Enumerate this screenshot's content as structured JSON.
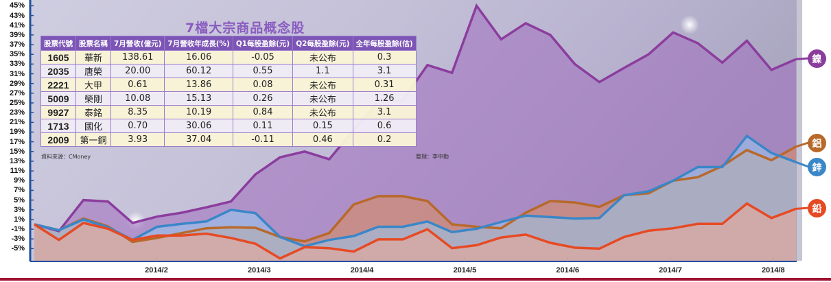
{
  "table": {
    "title": "7檔大宗商品概念股",
    "headers": [
      "股票代號",
      "股票名稱",
      "7月營收(億元)",
      "7月營收年成長(%)",
      "Q1每股盈餘(元)",
      "Q2每股盈餘(元)",
      "全年每股盈餘(估)"
    ],
    "rows": [
      [
        "1605",
        "華新",
        "138.61",
        "16.06",
        "-0.05",
        "未公布",
        "0.3"
      ],
      [
        "2035",
        "唐榮",
        "20.00",
        "60.12",
        "0.55",
        "1.1",
        "3.1"
      ],
      [
        "2221",
        "大甲",
        "0.61",
        "13.86",
        "0.08",
        "未公布",
        "0.31"
      ],
      [
        "5009",
        "榮剛",
        "10.08",
        "15.13",
        "0.26",
        "未公布",
        "1.26"
      ],
      [
        "9927",
        "泰銘",
        "8.35",
        "10.19",
        "0.84",
        "未公布",
        "3.1"
      ],
      [
        "1713",
        "國化",
        "0.70",
        "30.06",
        "0.11",
        "0.15",
        "0.6"
      ],
      [
        "2009",
        "第一銅",
        "3.93",
        "37.04",
        "-0.11",
        "0.46",
        "0.2"
      ]
    ],
    "source": "資料來源：CMoney",
    "editor": "整理：李中勳"
  },
  "colors": {
    "nickel": "#8b3d9e",
    "aluminum": "#b8692a",
    "zinc": "#3a86c8",
    "lead": "#e64a24",
    "axis": "#1f4fa0",
    "footer_rule": "#a01030"
  },
  "chart_data": {
    "type": "area",
    "title": "7檔大宗商品概念股",
    "xlabel": "",
    "ylabel": "",
    "ylim": [
      -5,
      45
    ],
    "y_ticks": [
      "45%",
      "43%",
      "41%",
      "39%",
      "37%",
      "35%",
      "33%",
      "31%",
      "29%",
      "27%",
      "25%",
      "23%",
      "21%",
      "19%",
      "17%",
      "15%",
      "13%",
      "11%",
      "9%",
      "7%",
      "5%",
      "3%",
      "1%",
      "-1%",
      "-3%",
      "-5%"
    ],
    "x_tick_labels": [
      "2014/2",
      "2014/3",
      "2014/4",
      "2014/5",
      "2014/6",
      "2014/7",
      "2014/8"
    ],
    "grid": false,
    "legend_position": "right (labels at line ends)",
    "x_points": 32,
    "series": [
      {
        "name": "鎳",
        "color": "#8b3d9e",
        "values": [
          0,
          -1.4,
          5.0,
          4.7,
          0.3,
          1.6,
          2.4,
          3.5,
          4.7,
          10.3,
          13.8,
          15.0,
          13.4,
          19.4,
          25.3,
          25.6,
          32.8,
          31.2,
          45.0,
          38.1,
          41.4,
          39.0,
          33.0,
          29.3,
          32.2,
          35.0,
          39.5,
          37.3,
          33.3,
          37.8,
          31.8,
          34.0
        ]
      },
      {
        "name": "鋁",
        "color": "#b8692a",
        "values": [
          0,
          -1.2,
          1.2,
          -0.4,
          -3.6,
          -2.8,
          -1.8,
          -0.8,
          -0.6,
          -0.7,
          -2.6,
          -3.5,
          -1.8,
          4.1,
          5.8,
          5.8,
          4.8,
          0,
          -0.5,
          -0.8,
          2.4,
          4.8,
          4.5,
          3.6,
          6.0,
          6.4,
          9.0,
          9.7,
          12.0,
          15.3,
          13.2,
          16.0
        ]
      },
      {
        "name": "鋅",
        "color": "#3a86c8",
        "values": [
          0,
          -1.2,
          1.0,
          -0.6,
          -3.2,
          -0.5,
          0.1,
          0.6,
          3.0,
          2.3,
          -2.6,
          -4.5,
          -3.2,
          -2.4,
          -0.5,
          -0.5,
          0.6,
          -1.6,
          -0.9,
          0.5,
          1.8,
          1.5,
          1.2,
          1.3,
          6.0,
          6.8,
          9.0,
          11.8,
          11.8,
          18.2,
          14.7,
          12.8
        ]
      },
      {
        "name": "鉛",
        "color": "#e64a24",
        "values": [
          0,
          -3.2,
          0.3,
          -0.9,
          -3.2,
          -2.3,
          -2.3,
          -1.9,
          -2.8,
          -4.0,
          -7.0,
          -4.7,
          -4.9,
          -5.6,
          -3.1,
          -3.1,
          -1.0,
          -4.9,
          -4.3,
          -2.7,
          -2.1,
          -3.8,
          -4.8,
          -5.0,
          -2.6,
          -1.3,
          -0.8,
          0.1,
          0.1,
          4.3,
          1.3,
          3.2
        ]
      }
    ]
  }
}
